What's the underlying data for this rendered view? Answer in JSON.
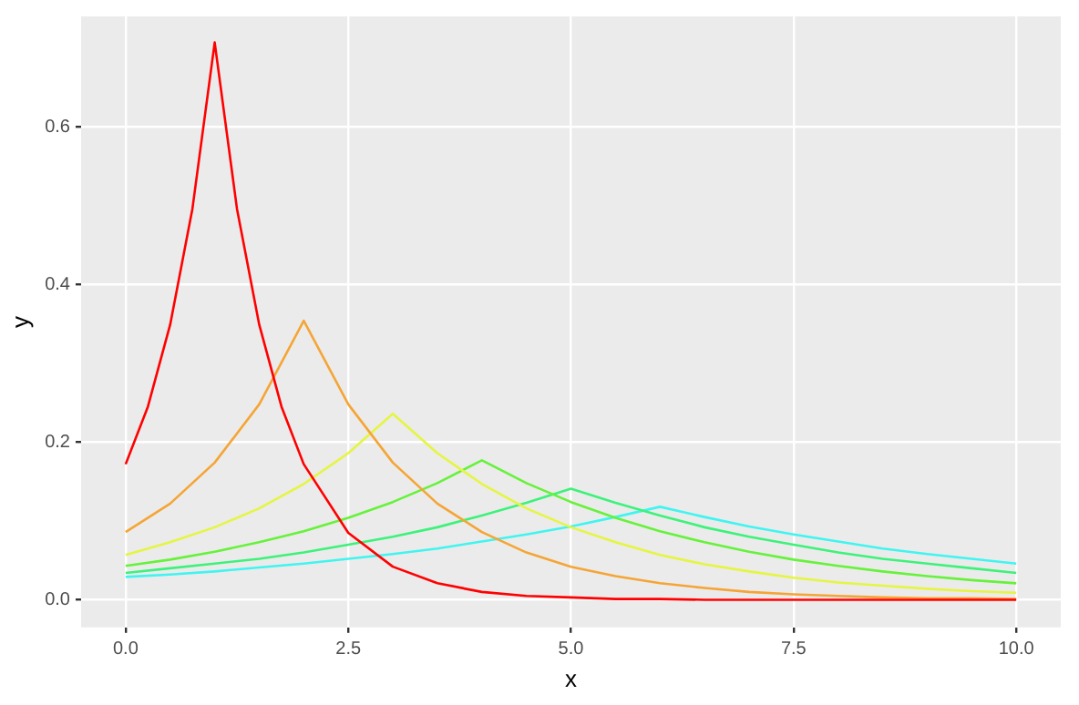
{
  "chart_data": {
    "type": "line",
    "xlabel": "x",
    "ylabel": "y",
    "grid": true,
    "legend": false,
    "marker": "none",
    "line_style": "solid",
    "xlim": [
      -0.5,
      10.5
    ],
    "xticks": [
      {
        "value": 0,
        "label": "0.0"
      },
      {
        "value": 2.5,
        "label": "2.5"
      },
      {
        "value": 5,
        "label": "5.0"
      },
      {
        "value": 7.5,
        "label": "7.5"
      },
      {
        "value": 10,
        "label": "10.0"
      }
    ],
    "ylim": [
      -0.035,
      0.74
    ],
    "yticks": [
      {
        "value": 0,
        "label": "0.0"
      },
      {
        "value": 0.2,
        "label": "0.2"
      },
      {
        "value": 0.4,
        "label": "0.4"
      },
      {
        "value": 0.6,
        "label": "0.6"
      }
    ],
    "series": [
      {
        "color": "#ff0000",
        "x": [
          0,
          0.25,
          0.5,
          0.75,
          1,
          1.25,
          1.5,
          1.75,
          2,
          2.5,
          3,
          3.5,
          4,
          4.5,
          5,
          5.5,
          6,
          6.5,
          7,
          8,
          9,
          10
        ],
        "values": [
          0.172,
          0.245,
          0.349,
          0.496,
          0.707,
          0.496,
          0.349,
          0.245,
          0.172,
          0.085,
          0.042,
          0.021,
          0.01,
          0.005,
          0.003,
          0.001,
          0.001,
          0,
          0,
          0,
          0,
          0
        ]
      },
      {
        "color": "#f5a535",
        "x": [
          0,
          0.5,
          1,
          1.5,
          2,
          2.5,
          3,
          3.5,
          4,
          4.5,
          5,
          5.5,
          6,
          6.5,
          7,
          7.5,
          8,
          8.5,
          9,
          9.5,
          10
        ],
        "values": [
          0.086,
          0.122,
          0.174,
          0.248,
          0.354,
          0.248,
          0.174,
          0.122,
          0.086,
          0.06,
          0.042,
          0.03,
          0.021,
          0.015,
          0.01,
          0.007,
          0.005,
          0.003,
          0.002,
          0.002,
          0.001
        ]
      },
      {
        "color": "#e5f542",
        "x": [
          0,
          0.5,
          1,
          1.5,
          2,
          2.5,
          3,
          3.5,
          4,
          4.5,
          5,
          5.5,
          6,
          6.5,
          7,
          7.5,
          8,
          8.5,
          9,
          9.5,
          10
        ],
        "values": [
          0.057,
          0.073,
          0.092,
          0.116,
          0.147,
          0.186,
          0.236,
          0.186,
          0.147,
          0.116,
          0.092,
          0.073,
          0.057,
          0.045,
          0.036,
          0.028,
          0.022,
          0.018,
          0.014,
          0.011,
          0.009
        ]
      },
      {
        "color": "#66f23a",
        "x": [
          0,
          0.5,
          1,
          1.5,
          2,
          2.5,
          3,
          3.5,
          4,
          4.5,
          5,
          5.5,
          6,
          6.5,
          7,
          7.5,
          8,
          8.5,
          9,
          9.5,
          10
        ],
        "values": [
          0.043,
          0.051,
          0.061,
          0.073,
          0.087,
          0.104,
          0.124,
          0.148,
          0.177,
          0.148,
          0.124,
          0.104,
          0.087,
          0.073,
          0.061,
          0.051,
          0.043,
          0.036,
          0.03,
          0.025,
          0.021
        ]
      },
      {
        "color": "#3df27a",
        "x": [
          0,
          0.5,
          1,
          1.5,
          2,
          2.5,
          3,
          3.5,
          4,
          4.5,
          5,
          5.5,
          6,
          6.5,
          7,
          7.5,
          8,
          8.5,
          9,
          9.5,
          10
        ],
        "values": [
          0.034,
          0.04,
          0.046,
          0.052,
          0.06,
          0.07,
          0.08,
          0.092,
          0.107,
          0.123,
          0.141,
          0.123,
          0.107,
          0.092,
          0.08,
          0.07,
          0.06,
          0.052,
          0.046,
          0.04,
          0.034
        ]
      },
      {
        "color": "#40f5f0",
        "x": [
          0,
          0.5,
          1,
          1.5,
          2,
          2.5,
          3,
          3.5,
          4,
          4.5,
          5,
          5.5,
          6,
          6.5,
          7,
          7.5,
          8,
          8.5,
          9,
          9.5,
          10
        ],
        "values": [
          0.029,
          0.032,
          0.036,
          0.041,
          0.046,
          0.052,
          0.058,
          0.065,
          0.074,
          0.083,
          0.093,
          0.105,
          0.118,
          0.105,
          0.093,
          0.083,
          0.074,
          0.065,
          0.058,
          0.052,
          0.046
        ]
      }
    ]
  }
}
